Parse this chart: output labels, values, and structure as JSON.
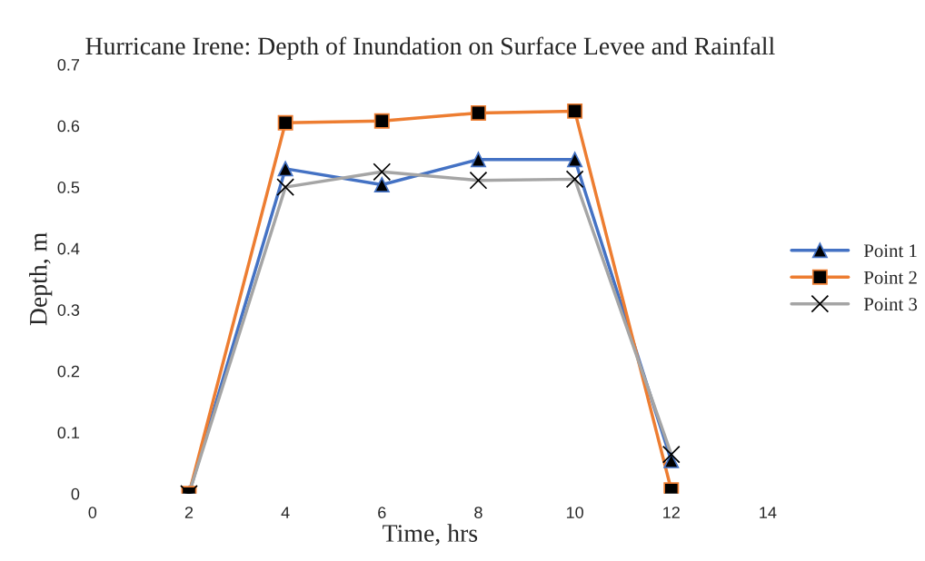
{
  "chart_data": {
    "type": "line",
    "title": "Hurricane Irene: Depth of Inundation on Surface Levee and Rainfall",
    "xlabel": "Time, hrs",
    "ylabel": "Depth, m",
    "xlim": [
      0,
      14
    ],
    "xticks": [
      0,
      2,
      4,
      6,
      8,
      10,
      12,
      14
    ],
    "ylim": [
      0,
      0.7
    ],
    "yticks": [
      0,
      0.1,
      0.2,
      0.3,
      0.4,
      0.5,
      0.6,
      0.7
    ],
    "grid": false,
    "legend": "right",
    "series": [
      {
        "name": "Point 1",
        "color": "#4472c4",
        "marker": "triangle",
        "x": [
          2,
          4,
          6,
          8,
          10,
          12
        ],
        "values": [
          0,
          0.53,
          0.504,
          0.545,
          0.545,
          0.054
        ]
      },
      {
        "name": "Point 2",
        "color": "#ed7d31",
        "marker": "square",
        "x": [
          2,
          4,
          6,
          8,
          10,
          12
        ],
        "values": [
          0,
          0.605,
          0.608,
          0.621,
          0.624,
          0.006
        ]
      },
      {
        "name": "Point 3",
        "color": "#a5a5a5",
        "marker": "cross",
        "x": [
          2,
          4,
          6,
          8,
          10,
          12
        ],
        "values": [
          0,
          0.5,
          0.525,
          0.511,
          0.513,
          0.064
        ]
      }
    ]
  }
}
